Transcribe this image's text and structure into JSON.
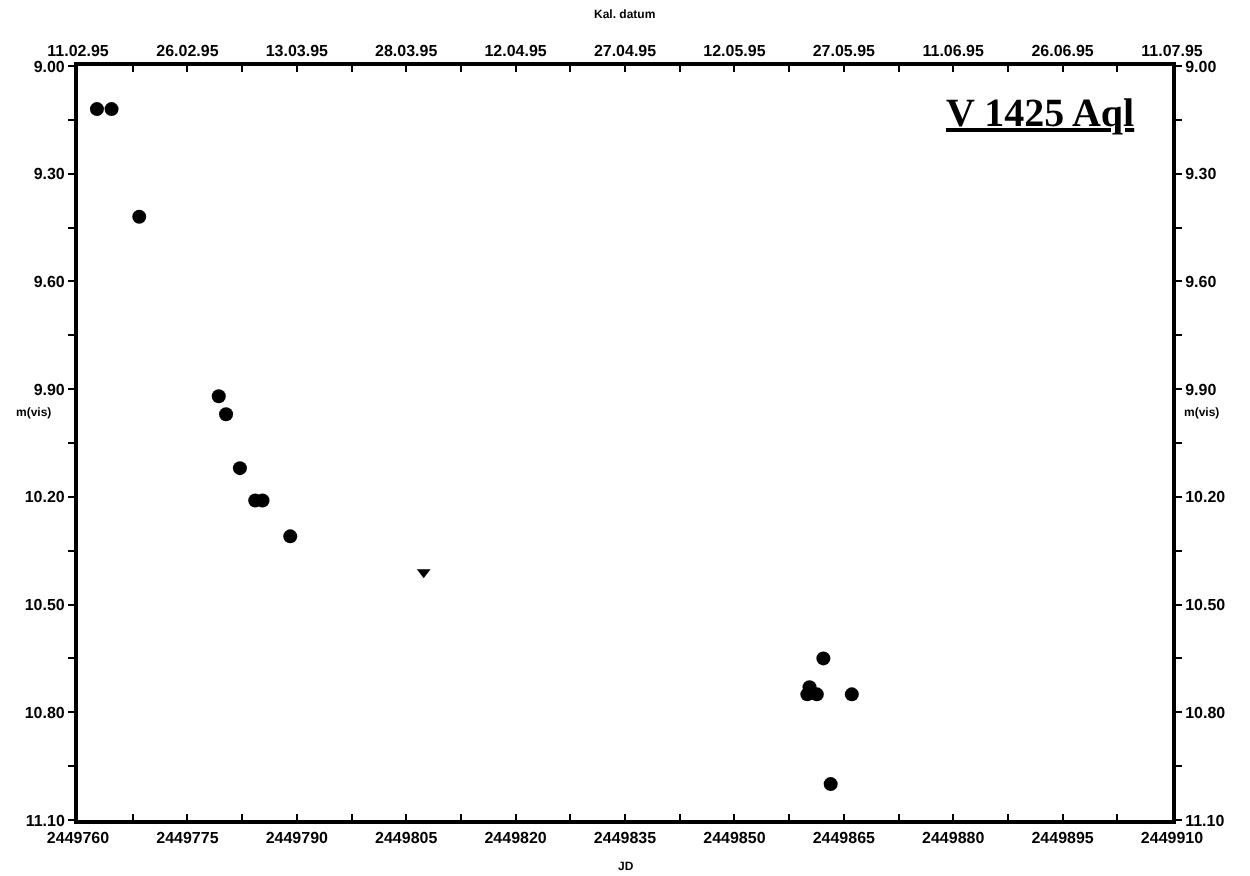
{
  "chart_data": {
    "type": "scatter",
    "title": "V 1425 Aql",
    "xlabel": "JD",
    "x2label": "Kal. datum",
    "ylabel": "m(vis)",
    "y2label": "m(vis)",
    "series": [
      {
        "marker": "circle",
        "color": "#000000",
        "x": [
          2449762.6,
          2449764.6,
          2449768.4,
          2449779.3,
          2449780.3,
          2449782.2,
          2449784.3,
          2449785.3,
          2449789.1,
          2449860.0,
          2449860.3,
          2449861.3,
          2449862.2,
          2449863.2,
          2449866.1
        ],
        "values": [
          9.12,
          9.12,
          9.42,
          9.92,
          9.97,
          10.12,
          10.21,
          10.21,
          10.31,
          10.75,
          10.73,
          10.75,
          10.65,
          11.0,
          10.75
        ]
      },
      {
        "marker": "triangle",
        "color": "#000000",
        "x": [
          2449807.4
        ],
        "values": [
          10.41
        ]
      }
    ],
    "xlim": [
      2449760,
      2449910
    ],
    "xticks": [
      {
        "value": 2449760,
        "label": "2449760"
      },
      {
        "value": 2449767.5,
        "label": null
      },
      {
        "value": 2449775,
        "label": "2449775"
      },
      {
        "value": 2449782.5,
        "label": null
      },
      {
        "value": 2449790,
        "label": "2449790"
      },
      {
        "value": 2449797.5,
        "label": null
      },
      {
        "value": 2449805,
        "label": "2449805"
      },
      {
        "value": 2449812.5,
        "label": null
      },
      {
        "value": 2449820,
        "label": "2449820"
      },
      {
        "value": 2449827.5,
        "label": null
      },
      {
        "value": 2449835,
        "label": "2449835"
      },
      {
        "value": 2449842.5,
        "label": null
      },
      {
        "value": 2449850,
        "label": "2449850"
      },
      {
        "value": 2449857.5,
        "label": null
      },
      {
        "value": 2449865,
        "label": "2449865"
      },
      {
        "value": 2449872.5,
        "label": null
      },
      {
        "value": 2449880,
        "label": "2449880"
      },
      {
        "value": 2449887.5,
        "label": null
      },
      {
        "value": 2449895,
        "label": "2449895"
      },
      {
        "value": 2449902.5,
        "label": null
      },
      {
        "value": 2449910,
        "label": "2449910"
      }
    ],
    "x2lim": [
      "1995-02-11",
      "1995-07-11"
    ],
    "x2ticks": [
      {
        "value": "1995-02-11",
        "label": "11.02.95"
      },
      {
        "value": "1995-02-18T12:00",
        "label": null
      },
      {
        "value": "1995-02-26",
        "label": "26.02.95"
      },
      {
        "value": "1995-03-05T12:00",
        "label": null
      },
      {
        "value": "1995-03-13",
        "label": "13.03.95"
      },
      {
        "value": "1995-03-20T12:00",
        "label": null
      },
      {
        "value": "1995-03-28",
        "label": "28.03.95"
      },
      {
        "value": "1995-04-04T12:00",
        "label": null
      },
      {
        "value": "1995-04-12",
        "label": "12.04.95"
      },
      {
        "value": "1995-04-19T12:00",
        "label": null
      },
      {
        "value": "1995-04-27",
        "label": "27.04.95"
      },
      {
        "value": "1995-05-04T12:00",
        "label": null
      },
      {
        "value": "1995-05-12",
        "label": "12.05.95"
      },
      {
        "value": "1995-05-19T12:00",
        "label": null
      },
      {
        "value": "1995-05-27",
        "label": "27.05.95"
      },
      {
        "value": "1995-06-03T12:00",
        "label": null
      },
      {
        "value": "1995-06-11",
        "label": "11.06.95"
      },
      {
        "value": "1995-06-18T12:00",
        "label": null
      },
      {
        "value": "1995-06-26",
        "label": "26.06.95"
      },
      {
        "value": "1995-07-03T12:00",
        "label": null
      },
      {
        "value": "1995-07-11",
        "label": "11.07.95"
      }
    ],
    "ylim": [
      11.1,
      9.0
    ],
    "yticks": [
      {
        "value": 9.0,
        "label": "9.00"
      },
      {
        "value": 9.15,
        "label": null
      },
      {
        "value": 9.3,
        "label": "9.30"
      },
      {
        "value": 9.45,
        "label": null
      },
      {
        "value": 9.6,
        "label": "9.60"
      },
      {
        "value": 9.75,
        "label": null
      },
      {
        "value": 9.9,
        "label": "9.90"
      },
      {
        "value": 10.05,
        "label": null
      },
      {
        "value": 10.2,
        "label": "10.20"
      },
      {
        "value": 10.35,
        "label": null
      },
      {
        "value": 10.5,
        "label": "10.50"
      },
      {
        "value": 10.65,
        "label": null
      },
      {
        "value": 10.8,
        "label": "10.80"
      },
      {
        "value": 10.95,
        "label": null
      },
      {
        "value": 11.1,
        "label": "11.10"
      }
    ],
    "y2lim": [
      11.1,
      9.0
    ],
    "y2ticks": [
      {
        "value": 9.0,
        "label": "9.00"
      },
      {
        "value": 9.15,
        "label": null
      },
      {
        "value": 9.3,
        "label": "9.30"
      },
      {
        "value": 9.45,
        "label": null
      },
      {
        "value": 9.6,
        "label": "9.60"
      },
      {
        "value": 9.75,
        "label": null
      },
      {
        "value": 9.9,
        "label": "9.90"
      },
      {
        "value": 10.05,
        "label": null
      },
      {
        "value": 10.2,
        "label": "10.20"
      },
      {
        "value": 10.35,
        "label": null
      },
      {
        "value": 10.5,
        "label": "10.50"
      },
      {
        "value": 10.65,
        "label": null
      },
      {
        "value": 10.8,
        "label": "10.80"
      },
      {
        "value": 10.95,
        "label": null
      },
      {
        "value": 11.1,
        "label": "11.10"
      }
    ]
  }
}
